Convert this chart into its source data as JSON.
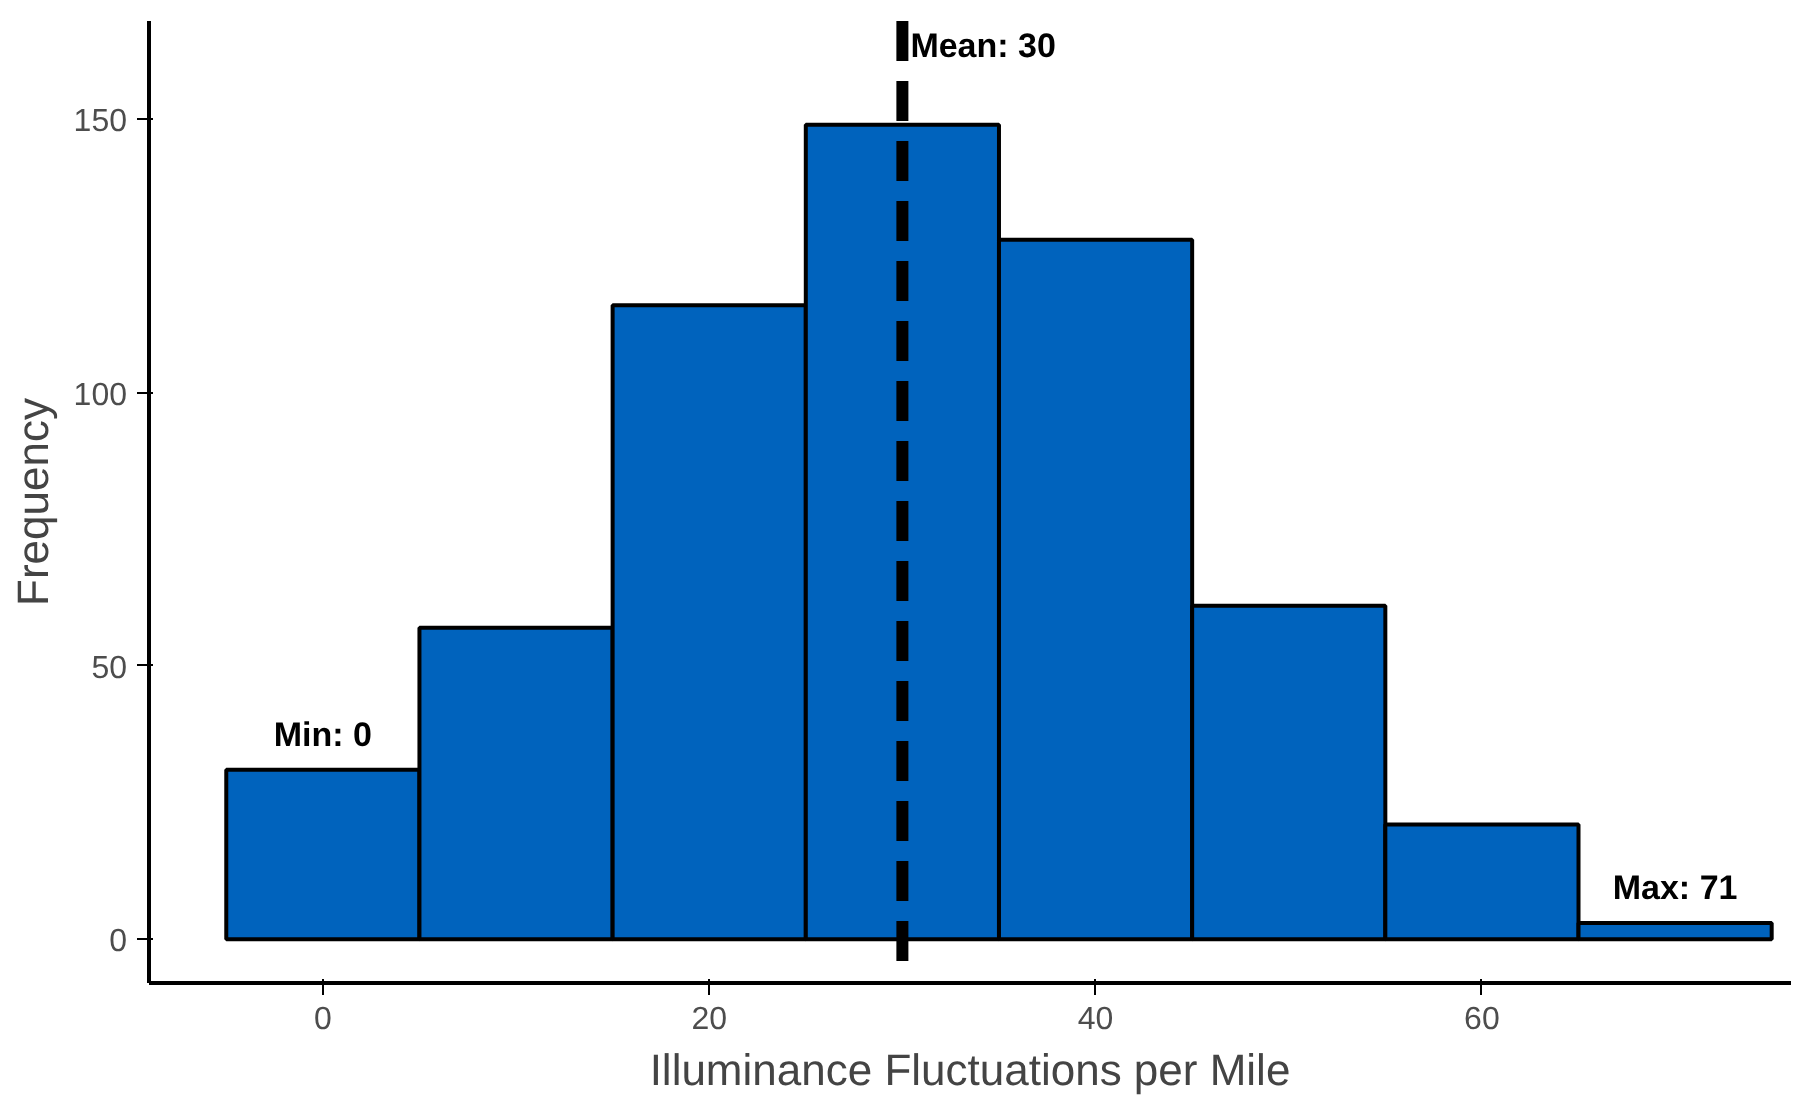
{
  "chart_data": {
    "type": "histogram",
    "xlabel": "Illuminance Fluctuations per Mile",
    "ylabel": "Frequency",
    "bins": [
      -5,
      5,
      15,
      25,
      35,
      45,
      55,
      65,
      75
    ],
    "values": [
      31,
      57,
      116,
      149,
      128,
      61,
      21,
      3
    ],
    "color": "#0063bd",
    "xlim": [
      -9,
      76
    ],
    "ylim": [
      -8,
      168
    ],
    "xticks": [
      0,
      20,
      40,
      60
    ],
    "yticks": [
      0,
      50,
      100,
      150
    ],
    "grid": false,
    "ref_lines": [
      {
        "axis": "x",
        "value": 30,
        "label": "Mean: 30",
        "color": "#000000",
        "line_style": "dashed"
      }
    ],
    "annotations": [
      {
        "text": "Min: 0",
        "x": 0,
        "y": 31
      },
      {
        "text": "Max: 71",
        "x": 70,
        "y": 3
      }
    ]
  }
}
